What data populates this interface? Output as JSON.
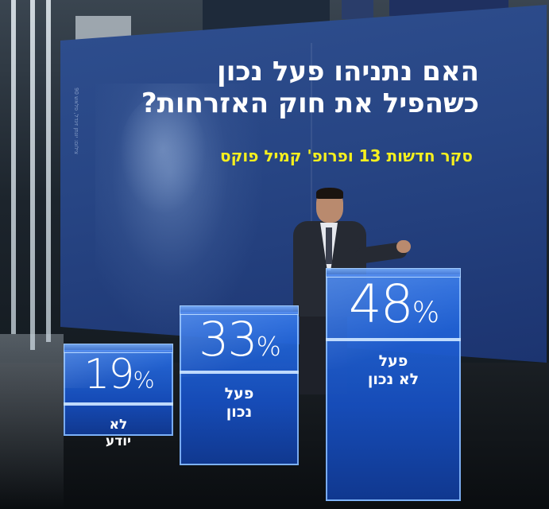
{
  "screen": {
    "title": "האם נתניהו פעל נכון\nכשהפיל את חוק האזרחות?",
    "source": "סקר חדשות 13 ופרופ' קמיל פוקס",
    "side_credit": "צילום: יונתן זינדל, פלאש 90"
  },
  "chart_data": {
    "type": "bar",
    "title": "האם נתניהו פעל נכון כשהפיל את חוק האזרחות?",
    "subtitle": "סקר חדשות 13 ופרופ' קמיל פוקס",
    "categories": [
      "לא יודע",
      "פעל נכון",
      "פעל לא נכון"
    ],
    "values": [
      19,
      33,
      48
    ],
    "value_labels": [
      "19",
      "33",
      "48"
    ],
    "unit": "%",
    "ylim": [
      0,
      50
    ],
    "colors": {
      "bar": "#1f5fd0",
      "edge": "#8cbeff",
      "title": "#ffffff",
      "source": "#f6f01e"
    }
  }
}
